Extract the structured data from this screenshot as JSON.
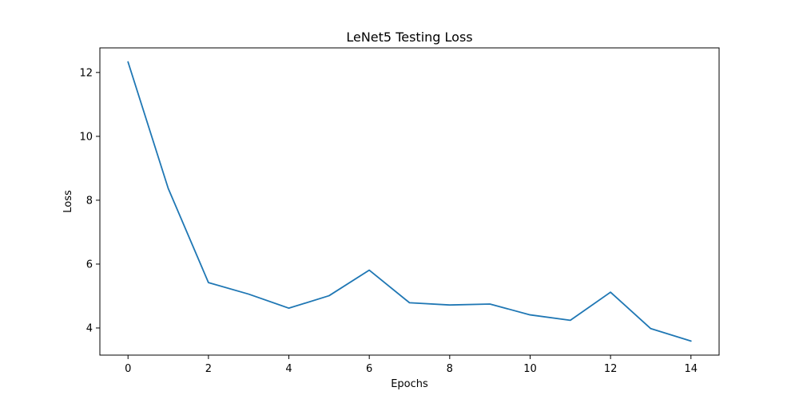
{
  "chart_data": {
    "type": "line",
    "title": "LeNet5 Testing Loss",
    "xlabel": "Epochs",
    "ylabel": "Loss",
    "x": [
      0,
      1,
      2,
      3,
      4,
      5,
      6,
      7,
      8,
      9,
      10,
      11,
      12,
      13,
      14
    ],
    "series": [
      {
        "values": [
          12.33,
          8.37,
          5.42,
          5.06,
          4.62,
          5.01,
          5.81,
          4.79,
          4.72,
          4.75,
          4.41,
          4.24,
          5.12,
          3.98,
          3.59
        ],
        "color": "#1f77b4"
      }
    ],
    "xlim": [
      -0.7,
      14.7
    ],
    "ylim": [
      3.15,
      12.77
    ],
    "xticks": [
      0,
      2,
      4,
      6,
      8,
      10,
      12,
      14
    ],
    "yticks": [
      4,
      6,
      8,
      10,
      12
    ],
    "grid": false,
    "legend": "none"
  }
}
